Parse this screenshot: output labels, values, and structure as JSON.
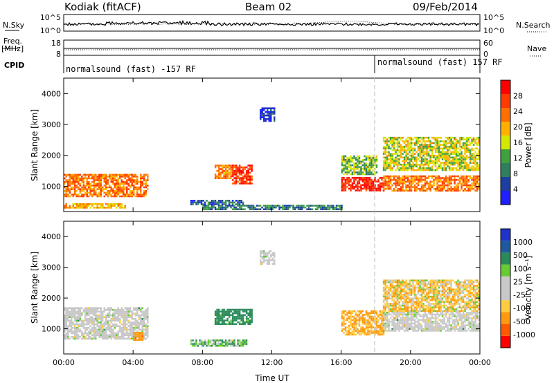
{
  "header": {
    "station": "Kodiak (fitACF)",
    "beam": "Beam 02",
    "date": "09/Feb/2014"
  },
  "side_labels": {
    "nsky": "N.Sky",
    "nsearch": "N.Search",
    "freq_line1": "Freq.",
    "freq_line2": "[MHz]",
    "nave": "Nave",
    "cpid": "CPID"
  },
  "cpid_labels": {
    "left": "normalsound (fast) -157 RF",
    "right": "normalsound (fast) 157 RF"
  },
  "colors": {
    "power": [
      "#1f1fff",
      "#1d3f9f",
      "#2f7f5f",
      "#3fa03f",
      "#d2e800",
      "#ffb000",
      "#ff7000",
      "#ff3a00",
      "#ff0000"
    ],
    "velocity": [
      "#ff0000",
      "#ff5a00",
      "#ff9a10",
      "#ffcc40",
      "#c8c8c8",
      "#c8c8c8",
      "#66cc33",
      "#2a8a5a",
      "#1f5aa0",
      "#2034cc"
    ],
    "ground_scatter": "#c8c8c8"
  },
  "chart_data": [
    {
      "panel": "noise",
      "type": "line",
      "x": [
        "00:00",
        "04:00",
        "08:00",
        "12:00",
        "16:00",
        "20:00",
        "00:00"
      ],
      "left_ticks": [
        "10^5",
        "10^0"
      ],
      "right_ticks": [
        "10^5",
        "10^0"
      ],
      "series": [
        {
          "name": "N.Sky"
        },
        {
          "name": "N.Search"
        }
      ]
    },
    {
      "panel": "frequency_nave",
      "type": "line",
      "left_ticks": [
        "18",
        "8"
      ],
      "right_ticks": [
        "60",
        "0"
      ],
      "series": [
        {
          "name": "Freq. [MHz]",
          "approx_value": 11
        },
        {
          "name": "Nave",
          "approx_value": 28
        }
      ]
    },
    {
      "panel": "power",
      "type": "heatmap",
      "ylabel": "Slant Range [km]",
      "ylim": [
        180,
        4500
      ],
      "yticks": [
        "1000",
        "2000",
        "3000",
        "4000"
      ],
      "xticks": [
        "00:00",
        "04:00",
        "08:00",
        "12:00",
        "16:00",
        "20:00",
        "00:00"
      ],
      "colorbar_label": "Power [dB]",
      "colorbar_ticks": [
        "28",
        "24",
        "20",
        "16",
        "12",
        "8",
        "4"
      ],
      "regions": [
        {
          "t0": 0.0,
          "t1": 4.8,
          "r0": 650,
          "r1": 1400,
          "val": 23
        },
        {
          "t0": 0.0,
          "t1": 3.5,
          "r0": 280,
          "r1": 450,
          "val": 20
        },
        {
          "t0": 7.3,
          "t1": 10.3,
          "r0": 400,
          "r1": 560,
          "val": 8
        },
        {
          "t0": 8.0,
          "t1": 16.0,
          "r0": 260,
          "r1": 400,
          "val": 10
        },
        {
          "t0": 8.7,
          "t1": 9.6,
          "r0": 1250,
          "r1": 1700,
          "val": 22
        },
        {
          "t0": 9.7,
          "t1": 10.8,
          "r0": 1100,
          "r1": 1700,
          "val": 27
        },
        {
          "t0": 11.3,
          "t1": 12.1,
          "r0": 3100,
          "r1": 3550,
          "val": 6
        },
        {
          "t0": 16.0,
          "t1": 18.4,
          "r0": 850,
          "r1": 1300,
          "val": 28
        },
        {
          "t0": 16.0,
          "t1": 18.0,
          "r0": 1400,
          "r1": 2000,
          "val": 14
        },
        {
          "t0": 18.4,
          "t1": 24.0,
          "r0": 850,
          "r1": 1350,
          "val": 23
        },
        {
          "t0": 18.4,
          "t1": 24.0,
          "r0": 1500,
          "r1": 2600,
          "val": 17
        }
      ]
    },
    {
      "panel": "velocity",
      "type": "heatmap",
      "ylabel": "Slant Range [km]",
      "ylim": [
        180,
        4500
      ],
      "yticks": [
        "1000",
        "2000",
        "3000",
        "4000"
      ],
      "xticks": [
        "00:00",
        "04:00",
        "08:00",
        "12:00",
        "16:00",
        "20:00",
        "00:00"
      ],
      "xlabel": "Time UT",
      "colorbar_label": "Velocity [m s⁻¹]",
      "colorbar_ticks": [
        "1000",
        "500",
        "100",
        "25",
        "-25",
        "-100",
        "-500",
        "-1000"
      ],
      "regions": [
        {
          "t0": 0.0,
          "t1": 4.8,
          "r0": 700,
          "r1": 1700,
          "val": 0
        },
        {
          "t0": 4.0,
          "t1": 4.5,
          "r0": 650,
          "r1": 900,
          "val": -400
        },
        {
          "t0": 7.3,
          "t1": 10.5,
          "r0": 450,
          "r1": 650,
          "val": 80
        },
        {
          "t0": 8.7,
          "t1": 10.8,
          "r0": 1150,
          "r1": 1650,
          "val": 200
        },
        {
          "t0": 11.3,
          "t1": 12.1,
          "r0": 3100,
          "r1": 3550,
          "val": 0
        },
        {
          "t0": 16.0,
          "t1": 18.4,
          "r0": 800,
          "r1": 1600,
          "val": -120
        },
        {
          "t0": 18.4,
          "t1": 24.0,
          "r0": 950,
          "r1": 1550,
          "val": 0
        },
        {
          "t0": 18.4,
          "t1": 24.0,
          "r0": 1600,
          "r1": 2600,
          "val": -60
        }
      ]
    }
  ]
}
